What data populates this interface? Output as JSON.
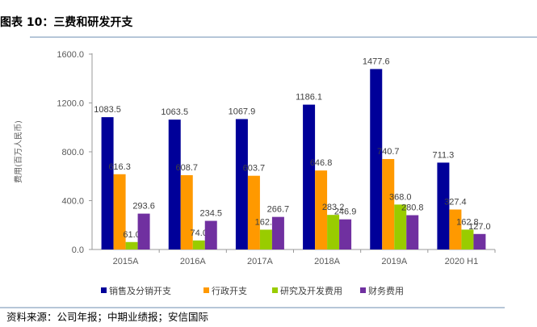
{
  "header": {
    "title": "图表 10：三费和研发开支"
  },
  "footer": {
    "source": "资料来源：公司年报；中期业绩报；安信国际"
  },
  "chart_data": {
    "type": "bar",
    "title": "图表 10：三费和研发开支",
    "xlabel": "",
    "ylabel": "费用(百万人民币)",
    "ylim": [
      0,
      1600
    ],
    "yticks": [
      "0.0",
      "400.0",
      "800.0",
      "1200.0",
      "1600.0"
    ],
    "categories": [
      "2015A",
      "2016A",
      "2017A",
      "2018A",
      "2019A",
      "2020 H1"
    ],
    "series": [
      {
        "name": "销售及分销开支",
        "color": "#000099",
        "values": [
          1083.5,
          1063.5,
          1067.9,
          1186.1,
          1477.6,
          711.3
        ]
      },
      {
        "name": "行政开支",
        "color": "#FF9900",
        "values": [
          616.3,
          608.7,
          603.7,
          646.8,
          740.7,
          327.4
        ]
      },
      {
        "name": "研究及开发费用",
        "color": "#99CC00",
        "values": [
          61.0,
          74.0,
          162.3,
          283.2,
          368.0,
          162.8
        ]
      },
      {
        "name": "财务费用",
        "color": "#7030A0",
        "values": [
          293.6,
          234.5,
          266.7,
          246.9,
          280.8,
          127.0
        ]
      }
    ],
    "legend_position": "bottom",
    "grid": false
  }
}
